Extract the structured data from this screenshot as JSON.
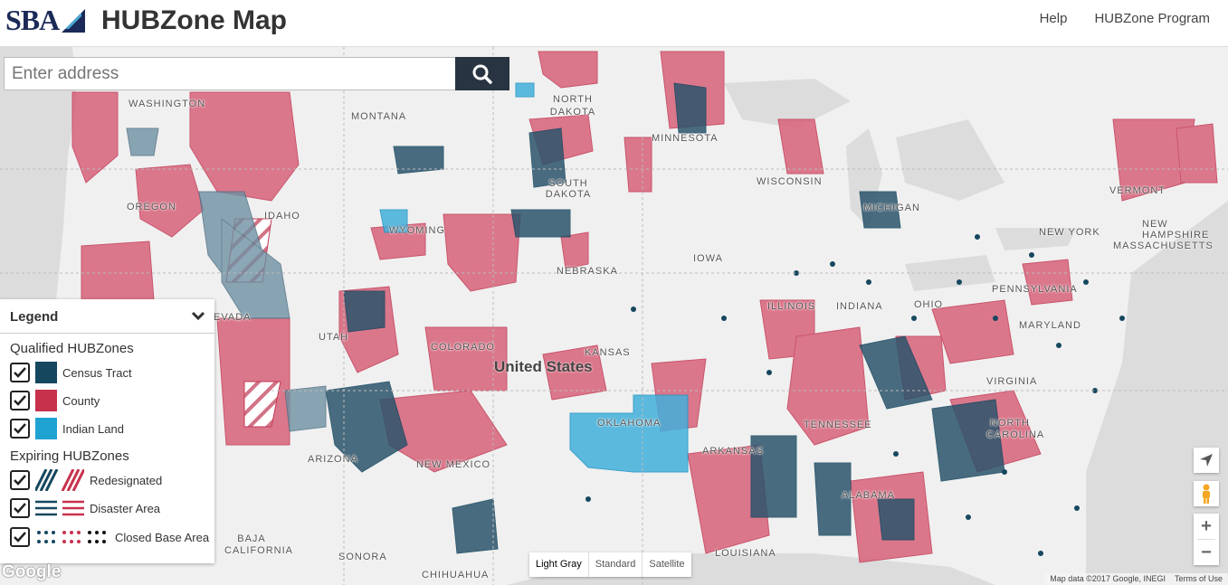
{
  "header": {
    "logo_text": "SBA",
    "title": "HUBZone Map",
    "nav": [
      "Help",
      "HUBZone Program"
    ]
  },
  "search": {
    "placeholder": "Enter address",
    "button_icon": "search-icon"
  },
  "legend": {
    "title": "Legend",
    "qualified_title": "Qualified HUBZones",
    "qualified": [
      {
        "label": "Census Tract",
        "checked": true,
        "color": "#15475f"
      },
      {
        "label": "County",
        "checked": true,
        "color": "#c8314c"
      },
      {
        "label": "Indian Land",
        "checked": true,
        "color": "#1fa3d3"
      }
    ],
    "expiring_title": "Expiring HUBZones",
    "expiring": [
      {
        "label": "Redesignated",
        "checked": true,
        "pattern": "diagonal-stripes"
      },
      {
        "label": "Disaster Area",
        "checked": true,
        "pattern": "horizontal-stripes"
      },
      {
        "label": "Closed Base Area",
        "checked": true,
        "pattern": "dots"
      }
    ]
  },
  "map": {
    "country_label": "United States",
    "labels": [
      "WASHINGTON",
      "MONTANA",
      "NORTH DAKOTA",
      "MINNESOTA",
      "OREGON",
      "IDAHO",
      "SOUTH DAKOTA",
      "WISCONSIN",
      "WYOMING",
      "MICHIGAN",
      "VERMONT",
      "NEW HAMPSHIRE",
      "MASSACHUSETTS",
      "NEW YORK",
      "NEBRASKA",
      "IOWA",
      "PENNSYLVANIA",
      "EVADA",
      "UTAH",
      "COLORADO",
      "ILLINOIS",
      "INDIANA",
      "OHIO",
      "MARYLAND",
      "KANSAS",
      "VIRGINIA",
      "TENNESSEE",
      "NORTH CAROLINA",
      "OKLAHOMA",
      "ARKANSAS",
      "ARIZONA",
      "NEW MEXICO",
      "ALABAMA",
      "BAJA CALIFORNIA",
      "SONORA",
      "CHIHUAHUA",
      "LOUISIANA"
    ],
    "map_types": [
      "Light Gray",
      "Standard",
      "Satellite"
    ],
    "active_map_type": "Light Gray",
    "zoom_in": "+",
    "zoom_out": "−",
    "google_logo": "Google",
    "attribution": "Map data ©2017 Google, INEGI",
    "terms": "Terms of Use"
  }
}
